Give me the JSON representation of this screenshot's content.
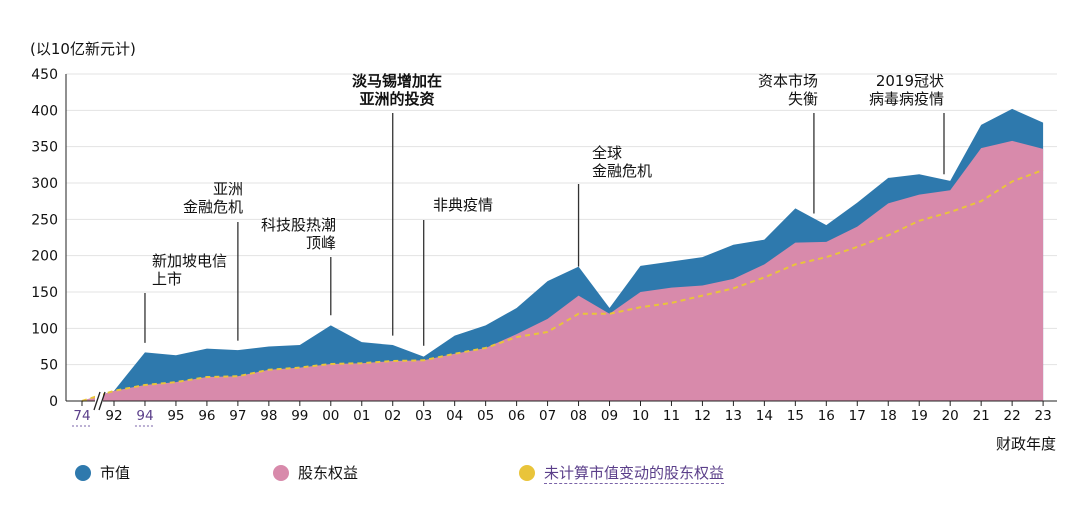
{
  "chart_data": {
    "type": "area",
    "unit_label": "(以10亿新元计)",
    "xlabel": "财政年度",
    "ylim": [
      0,
      450
    ],
    "yticks": [
      0,
      50,
      100,
      150,
      200,
      250,
      300,
      350,
      400,
      450
    ],
    "grid": true,
    "categories": [
      "74",
      "92",
      "94",
      "95",
      "96",
      "97",
      "98",
      "99",
      "00",
      "01",
      "02",
      "03",
      "04",
      "05",
      "06",
      "07",
      "08",
      "09",
      "10",
      "11",
      "12",
      "13",
      "14",
      "15",
      "16",
      "17",
      "18",
      "19",
      "20",
      "21",
      "22",
      "23"
    ],
    "highlighted_ticks": [
      "74",
      "94"
    ],
    "axis_break_between": [
      "74",
      "92"
    ],
    "series": [
      {
        "name": "市值",
        "color": "#2e79ad",
        "values": [
          0,
          14,
          67,
          63,
          72,
          70,
          75,
          77,
          104,
          81,
          77,
          61,
          90,
          104,
          128,
          165,
          185,
          128,
          186,
          192,
          198,
          215,
          222,
          265,
          242,
          273,
          307,
          312,
          303,
          380,
          402,
          383
        ]
      },
      {
        "name": "股东权益",
        "color": "#d88aab",
        "values": [
          0,
          14,
          22,
          26,
          33,
          34,
          43,
          46,
          51,
          52,
          55,
          56,
          65,
          73,
          92,
          113,
          145,
          120,
          150,
          156,
          159,
          168,
          188,
          218,
          219,
          240,
          272,
          284,
          290,
          348,
          358,
          347
        ]
      },
      {
        "name": "未计算市值变动的股东权益",
        "color": "#e9c43a",
        "values": [
          0,
          14,
          22,
          26,
          33,
          34,
          43,
          46,
          51,
          52,
          55,
          56,
          65,
          73,
          88,
          95,
          120,
          120,
          129,
          135,
          145,
          155,
          170,
          188,
          198,
          212,
          228,
          248,
          260,
          275,
          302,
          318
        ]
      }
    ],
    "annotations": [
      {
        "lines": [
          "新加坡电信",
          "上市"
        ],
        "x_index": 2,
        "y_value": 80,
        "bold": false
      },
      {
        "lines": [
          "亚洲",
          "金融危机"
        ],
        "x_index": 5,
        "y_value": 83,
        "bold": false
      },
      {
        "lines": [
          "科技股热潮",
          "顶峰"
        ],
        "x_index": 8,
        "y_value": 118,
        "bold": false
      },
      {
        "lines": [
          "淡马锡增加在",
          "亚洲的投资"
        ],
        "x_index": 10,
        "y_value": 90,
        "bold": true
      },
      {
        "lines": [
          "非典疫情"
        ],
        "x_index": 11,
        "y_value": 76,
        "bold": false
      },
      {
        "lines": [
          "全球",
          "金融危机"
        ],
        "x_index": 16,
        "y_value": 185,
        "bold": false
      },
      {
        "lines": [
          "资本市场",
          "失衡"
        ],
        "x_index": 23.6,
        "y_value": 258,
        "bold": false
      },
      {
        "lines": [
          "2019冠状",
          "病毒病疫情"
        ],
        "x_index": 27.8,
        "y_value": 312,
        "bold": false
      }
    ]
  },
  "legend": [
    {
      "label": "市值",
      "color": "#2e79ad",
      "link": false
    },
    {
      "label": "股东权益",
      "color": "#d88aab",
      "link": false
    },
    {
      "label": "未计算市值变动的股东权益",
      "color": "#e9c43a",
      "link": true
    }
  ]
}
